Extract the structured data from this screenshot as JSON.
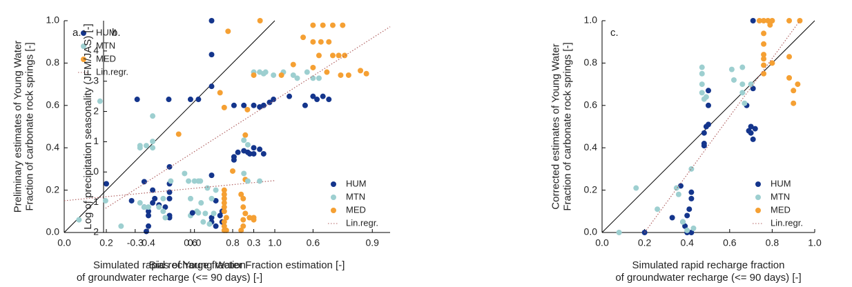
{
  "chart_data": [
    {
      "type": "scatter",
      "panel_label": "a.",
      "ylabel": [
        "Preliminary estimates of Young Water",
        "Fraction of carbonate rock springs [-]"
      ],
      "xlabel": [
        "Simulated rapid recharge fraction",
        "of groundwater recharge (<= 90 days) [-]"
      ],
      "xlim": [
        0,
        1
      ],
      "ylim": [
        0,
        1
      ],
      "xticks": [
        {
          "value": 0,
          "label": "0.0"
        },
        0.2,
        0.4,
        0.6,
        0.8,
        {
          "value": 1,
          "label": "1.0"
        }
      ],
      "yticks": [
        {
          "value": 0,
          "label": "0.0"
        },
        0.2,
        0.4,
        0.6,
        0.8,
        {
          "value": 1,
          "label": "1.0"
        }
      ],
      "identity_line": true,
      "legend": "upper left",
      "series": [
        {
          "name": "HUM",
          "color": "#14358c",
          "x": [
            0.7,
            0.7,
            0.7,
            0.2,
            0.32,
            0.38,
            0.38,
            0.4,
            0.42,
            0.4,
            0.43,
            0.45,
            0.48,
            0.5,
            0.5,
            0.5,
            0.5,
            0.5,
            0.5,
            0.4,
            0.7,
            0.72,
            0.7,
            0.7,
            0.72,
            0.75,
            0.74,
            0.75,
            0.42,
            0.39
          ],
          "values": [
            1.0,
            0.84,
            0.69,
            0.23,
            0.15,
            0.24,
            0.12,
            0.1,
            0.2,
            0.03,
            0.16,
            0.13,
            0.12,
            0.23,
            0.19,
            0.16,
            0.08,
            0.07,
            0.31,
            0.08,
            0.27,
            0.15,
            0.07,
            0.05,
            0.03,
            0.1,
            0.08,
            0.05,
            0.14,
            0.005
          ]
        },
        {
          "name": "MTN",
          "color": "#9dcfd0",
          "x": [
            0.07,
            0.17,
            0.27,
            0.36,
            0.36,
            0.39,
            0.42,
            0.42,
            0.42,
            0.36,
            0.38,
            0.4,
            0.45,
            0.47,
            0.47,
            0.48,
            0.6,
            0.6,
            0.63,
            0.65,
            0.67,
            0.68,
            0.7,
            0.72,
            0.69,
            0.66,
            0.71
          ],
          "values": [
            0.06,
            0.62,
            0.03,
            0.4,
            0.41,
            0.41,
            0.43,
            0.4,
            0.55,
            0.14,
            0.12,
            0.12,
            0.12,
            0.16,
            0.1,
            0.07,
            0.16,
            0.08,
            0.1,
            0.14,
            0.09,
            0.21,
            0.16,
            0.2,
            0.04,
            0.05,
            0.09
          ]
        },
        {
          "name": "MED",
          "color": "#f5a033",
          "x": [
            0.93,
            0.74,
            0.76,
            0.87,
            0.8,
            0.86,
            0.86,
            0.76,
            0.76,
            0.76,
            0.76,
            0.76,
            0.76,
            0.77,
            0.76,
            0.76,
            0.76,
            0.84,
            0.85,
            0.85,
            0.86,
            0.85,
            0.85,
            0.9,
            0.88,
            0.9,
            0.77,
            0.84
          ],
          "values": [
            1.0,
            0.66,
            0.59,
            0.58,
            0.29,
            0.46,
            0.25,
            0.2,
            0.18,
            0.16,
            0.14,
            0.12,
            0.1,
            0.07,
            0.05,
            0.03,
            0.01,
            0.18,
            0.16,
            0.12,
            0.09,
            0.06,
            0.03,
            0.07,
            0.07,
            0.06,
            0.01,
            0.01
          ]
        },
        {
          "name": "Lin.regr.",
          "color": "#b06060",
          "kind": "line",
          "dash": "dotted",
          "x": [
            0,
            1
          ],
          "values": [
            0.15,
            0.245
          ]
        }
      ]
    },
    {
      "type": "scatter",
      "panel_label": "b.",
      "ylabel": [
        "Log of precipitation seasonality (JFM/JAS) [-]"
      ],
      "xlabel": [
        "Bias of Young Water Fraction estimation [-]"
      ],
      "xlim": [
        -0.46,
        0.99
      ],
      "ylim": [
        -2,
        5
      ],
      "xticks": [
        -0.3,
        {
          "value": 0,
          "label": "0.0"
        },
        0.3,
        0.6,
        0.9
      ],
      "yticks": [
        -2,
        -1,
        0,
        1,
        2,
        3,
        4
      ],
      "identity_line": false,
      "legend": "lower right",
      "series": [
        {
          "name": "HUM",
          "color": "#14358c",
          "x": [
            -0.29,
            -0.13,
            -0.02,
            0.02,
            -0.01,
            0.2,
            0.2,
            0.22,
            0.27,
            0.3,
            0.28,
            0.25,
            0.3,
            0.35,
            0.33,
            0.2,
            0.25,
            0.3,
            0.33,
            0.35,
            0.4,
            0.38,
            0.48,
            0.6,
            0.62,
            0.65,
            0.68,
            0.56
          ],
          "values": [
            2.4,
            2.4,
            2.4,
            2.4,
            -1.35,
            0.5,
            0.4,
            0.65,
            0.65,
            0.8,
            0.6,
            0.7,
            0.6,
            0.6,
            0.75,
            2.2,
            2.2,
            2.2,
            2.15,
            2.2,
            2.4,
            2.3,
            2.5,
            2.5,
            2.4,
            2.5,
            2.4,
            2.2
          ]
        },
        {
          "name": "MTN",
          "color": "#9dcfd0",
          "x": [
            -0.45,
            -0.12,
            -0.05,
            0.0,
            0.02,
            -0.03,
            0.03,
            0.02,
            0.25,
            0.27,
            0.25,
            0.27,
            0.33,
            0.3,
            0.33,
            0.36,
            0.4,
            0.45,
            0.5,
            0.52,
            0.57,
            0.6,
            0.63,
            0.35
          ],
          "values": [
            -0.95,
            -0.3,
            -0.05,
            -0.3,
            -0.3,
            -0.3,
            -0.3,
            -1.35,
            1.05,
            0.9,
            -0.05,
            -0.3,
            -0.3,
            3.3,
            3.3,
            3.3,
            3.2,
            3.3,
            3.2,
            3.1,
            3.3,
            3.1,
            3.1,
            3.25
          ]
        },
        {
          "name": "MED",
          "color": "#f5a033",
          "x": [
            -0.08,
            0.17,
            0.55,
            0.6,
            0.65,
            0.7,
            0.75,
            0.6,
            0.64,
            0.68,
            0.63,
            0.7,
            0.73,
            0.76,
            0.6,
            0.67,
            0.74,
            0.3,
            0.44,
            0.5,
            0.84,
            0.87,
            0.78
          ],
          "values": [
            1.25,
            4.65,
            4.45,
            4.85,
            4.85,
            4.85,
            4.85,
            4.3,
            4.3,
            4.3,
            3.85,
            3.85,
            3.85,
            3.85,
            3.45,
            3.3,
            3.2,
            3.2,
            3.2,
            3.55,
            3.35,
            3.25,
            3.2
          ]
        },
        {
          "name": "Lin.regr.",
          "color": "#b06060",
          "kind": "line",
          "dash": "dotted",
          "x": [
            -0.45,
            0.99
          ],
          "values": [
            -1.2,
            4.8
          ]
        }
      ]
    },
    {
      "type": "scatter",
      "panel_label": "c.",
      "ylabel": [
        "Corrected estimates of Young Water",
        "Fraction of carbonate rock springs [-]"
      ],
      "xlabel": [
        "Simulated rapid recharge fraction",
        "of groundwater recharge (<= 90 days) [-]"
      ],
      "xlim": [
        0,
        1
      ],
      "ylim": [
        0,
        1
      ],
      "xticks": [
        {
          "value": 0,
          "label": "0.0"
        },
        0.2,
        0.4,
        0.6,
        0.8,
        {
          "value": 1,
          "label": "1.0"
        }
      ],
      "yticks": [
        {
          "value": 0,
          "label": "0.0"
        },
        0.2,
        0.4,
        0.6,
        0.8,
        {
          "value": 1,
          "label": "1.0"
        }
      ],
      "identity_line": true,
      "legend": "lower right",
      "series": [
        {
          "name": "HUM",
          "color": "#14358c",
          "x": [
            0.2,
            0.33,
            0.37,
            0.38,
            0.39,
            0.4,
            0.41,
            0.42,
            0.42,
            0.4,
            0.42,
            0.48,
            0.48,
            0.49,
            0.5,
            0.5,
            0.5,
            0.48,
            0.68,
            0.69,
            0.7,
            0.71,
            0.7,
            0.71,
            0.71,
            0.72
          ],
          "values": [
            0.0,
            0.07,
            0.22,
            0.05,
            0.03,
            0.08,
            0.11,
            0.19,
            0.16,
            0.0,
            0.0,
            0.42,
            0.47,
            0.5,
            0.51,
            0.6,
            0.67,
            0.41,
            0.6,
            0.48,
            0.47,
            0.44,
            0.5,
            0.68,
            1.0,
            0.49
          ]
        },
        {
          "name": "MTN",
          "color": "#9dcfd0",
          "x": [
            0.08,
            0.16,
            0.26,
            0.35,
            0.36,
            0.38,
            0.4,
            0.42,
            0.43,
            0.47,
            0.47,
            0.47,
            0.47,
            0.48,
            0.49,
            0.61,
            0.62,
            0.66,
            0.66,
            0.66,
            0.67,
            0.7
          ],
          "values": [
            0.0,
            0.21,
            0.11,
            0.21,
            0.18,
            0.05,
            0.01,
            0.3,
            0.02,
            0.78,
            0.75,
            0.7,
            0.66,
            0.63,
            0.64,
            0.77,
            0.72,
            0.78,
            0.7,
            0.66,
            0.61,
            0.7
          ]
        },
        {
          "name": "MED",
          "color": "#f5a033",
          "x": [
            0.74,
            0.76,
            0.78,
            0.8,
            0.88,
            0.93,
            0.79,
            0.76,
            0.76,
            0.76,
            0.76,
            0.76,
            0.76,
            0.8,
            0.88,
            0.88,
            0.9,
            0.9,
            0.92
          ],
          "values": [
            1.0,
            1.0,
            1.0,
            1.0,
            1.0,
            1.0,
            0.98,
            0.94,
            0.89,
            0.84,
            0.82,
            0.79,
            0.75,
            0.8,
            0.83,
            0.73,
            0.67,
            0.61,
            0.7
          ]
        },
        {
          "name": "Lin.regr.",
          "color": "#b06060",
          "kind": "line",
          "dash": "dotted",
          "x": [
            0.2,
            0.93
          ],
          "values": [
            0.0,
            1.0
          ]
        }
      ]
    }
  ]
}
